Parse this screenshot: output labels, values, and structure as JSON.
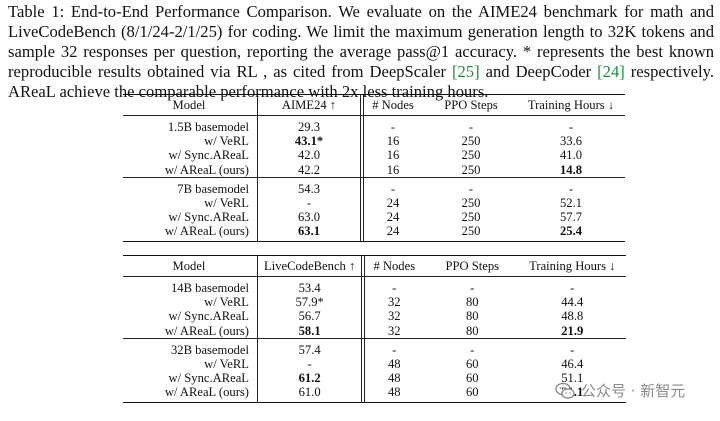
{
  "caption": {
    "prefix": "Table 1:  End-to-End Performance Comparison.  We evaluate on the AIME24 benchmark for math and LiveCodeBench (8/1/24-2/1/25) for coding. We limit the maximum generation length to 32K tokens and sample 32 responses per question, reporting the average pass@1 accuracy. * represents the best known reproducible results obtained via RL , as cited from DeepScaler ",
    "ref1": "[25]",
    "middle": " and DeepCoder ",
    "ref2": "[24]",
    "suffix": " respectively. AReaL achieve the comparable performance with 2x less training hours."
  },
  "tables": [
    {
      "headers": [
        "Model",
        "AIME24 ↑",
        "# Nodes",
        "PPO Steps",
        "Training Hours ↓"
      ],
      "groups": [
        [
          [
            "1.5B basemodel",
            "29.3",
            "-",
            "-",
            "-"
          ],
          [
            "w/ VeRL",
            "43.1*",
            "16",
            "250",
            "33.6"
          ],
          [
            "w/ Sync.AReaL",
            "42.0",
            "16",
            "250",
            "41.0"
          ],
          [
            "w/ AReaL (ours)",
            "42.2",
            "16",
            "250",
            "14.8"
          ]
        ],
        [
          [
            "7B basemodel",
            "54.3",
            "-",
            "-",
            "-"
          ],
          [
            "w/ VeRL",
            "-",
            "24",
            "250",
            "52.1"
          ],
          [
            "w/ Sync.AReaL",
            "63.0",
            "24",
            "250",
            "57.7"
          ],
          [
            "w/ AReaL (ours)",
            "63.1",
            "24",
            "250",
            "25.4"
          ]
        ]
      ]
    },
    {
      "headers": [
        "Model",
        "LiveCodeBench ↑",
        "# Nodes",
        "PPO Steps",
        "Training Hours ↓"
      ],
      "groups": [
        [
          [
            "14B basemodel",
            "53.4",
            "-",
            "-",
            "-"
          ],
          [
            "w/ VeRL",
            "57.9*",
            "32",
            "80",
            "44.4"
          ],
          [
            "w/ Sync.AReaL",
            "56.7",
            "32",
            "80",
            "48.8"
          ],
          [
            "w/ AReaL (ours)",
            "58.1",
            "32",
            "80",
            "21.9"
          ]
        ],
        [
          [
            "32B basemodel",
            "57.4",
            "-",
            "-",
            "-"
          ],
          [
            "w/ VeRL",
            "-",
            "48",
            "60",
            "46.4"
          ],
          [
            "w/ Sync.AReaL",
            "61.2",
            "48",
            "60",
            "51.1"
          ],
          [
            "w/ AReaL (ours)",
            "61.0",
            "48",
            "60",
            "31.1"
          ]
        ]
      ]
    }
  ],
  "watermark": {
    "text": "公众号 · 新智元",
    "icon": "wechat-icon"
  }
}
